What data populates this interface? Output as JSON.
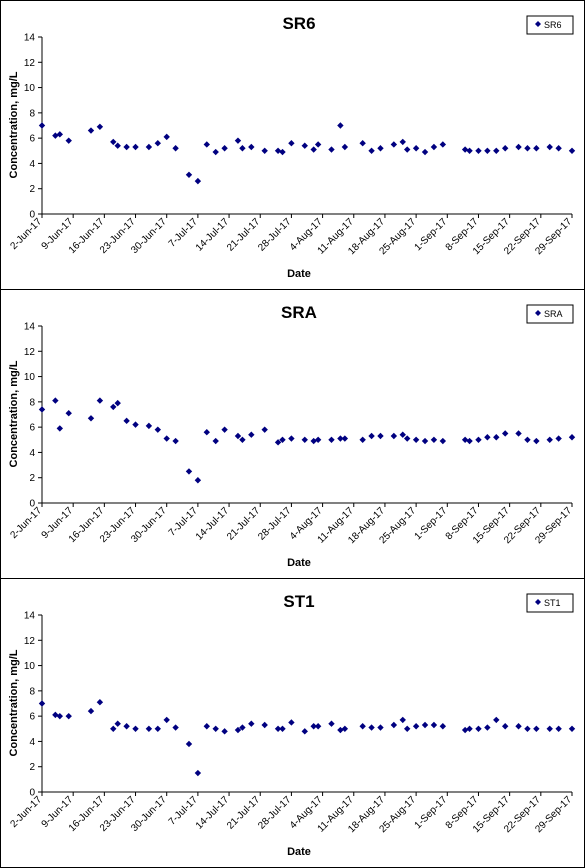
{
  "chart_data": [
    {
      "type": "scatter",
      "title": "SR6",
      "xlabel": "Date",
      "ylabel": "Concentration, mg/L",
      "ylim": [
        0,
        14
      ],
      "yticks": [
        0,
        2,
        4,
        6,
        8,
        10,
        12,
        14
      ],
      "xlim": [
        "2017-06-02",
        "2017-09-29"
      ],
      "x_tick_labels": [
        "2-Jun-17",
        "9-Jun-17",
        "16-Jun-17",
        "23-Jun-17",
        "30-Jun-17",
        "7-Jul-17",
        "14-Jul-17",
        "21-Jul-17",
        "28-Jul-17",
        "4-Aug-17",
        "11-Aug-17",
        "18-Aug-17",
        "25-Aug-17",
        "1-Sep-17",
        "8-Sep-17",
        "15-Sep-17",
        "22-Sep-17",
        "29-Sep-17"
      ],
      "grid": false,
      "legend": "top-right",
      "marker_color": "#000080",
      "series": [
        {
          "name": "SR6",
          "x": [
            "2017-06-02",
            "2017-06-05",
            "2017-06-06",
            "2017-06-08",
            "2017-06-13",
            "2017-06-15",
            "2017-06-18",
            "2017-06-19",
            "2017-06-21",
            "2017-06-23",
            "2017-06-26",
            "2017-06-28",
            "2017-06-30",
            "2017-07-02",
            "2017-07-05",
            "2017-07-07",
            "2017-07-09",
            "2017-07-11",
            "2017-07-13",
            "2017-07-16",
            "2017-07-17",
            "2017-07-19",
            "2017-07-22",
            "2017-07-25",
            "2017-07-26",
            "2017-07-28",
            "2017-07-31",
            "2017-08-02",
            "2017-08-03",
            "2017-08-06",
            "2017-08-08",
            "2017-08-09",
            "2017-08-13",
            "2017-08-15",
            "2017-08-17",
            "2017-08-20",
            "2017-08-22",
            "2017-08-23",
            "2017-08-25",
            "2017-08-27",
            "2017-08-29",
            "2017-08-31",
            "2017-09-05",
            "2017-09-06",
            "2017-09-08",
            "2017-09-10",
            "2017-09-12",
            "2017-09-14",
            "2017-09-17",
            "2017-09-19",
            "2017-09-21",
            "2017-09-24",
            "2017-09-26",
            "2017-09-29"
          ],
          "y": [
            7.0,
            6.2,
            6.3,
            5.8,
            6.6,
            6.9,
            5.7,
            5.4,
            5.3,
            5.3,
            5.3,
            5.6,
            6.1,
            5.2,
            3.1,
            2.6,
            5.5,
            4.9,
            5.2,
            5.8,
            5.2,
            5.3,
            5.0,
            5.0,
            4.9,
            5.6,
            5.4,
            5.1,
            5.5,
            5.1,
            7.0,
            5.3,
            5.6,
            5.0,
            5.2,
            5.5,
            5.7,
            5.1,
            5.2,
            4.9,
            5.3,
            5.5,
            5.1,
            5.0,
            5.0,
            5.0,
            5.0,
            5.2,
            5.3,
            5.2,
            5.2,
            5.3,
            5.2,
            5.0
          ]
        }
      ]
    },
    {
      "type": "scatter",
      "title": "SRA",
      "xlabel": "Date",
      "ylabel": "Concentration, mg/L",
      "ylim": [
        0,
        14
      ],
      "yticks": [
        0,
        2,
        4,
        6,
        8,
        10,
        12,
        14
      ],
      "xlim": [
        "2017-06-02",
        "2017-09-29"
      ],
      "x_tick_labels": [
        "2-Jun-17",
        "9-Jun-17",
        "16-Jun-17",
        "23-Jun-17",
        "30-Jun-17",
        "7-Jul-17",
        "14-Jul-17",
        "21-Jul-17",
        "28-Jul-17",
        "4-Aug-17",
        "11-Aug-17",
        "18-Aug-17",
        "25-Aug-17",
        "1-Sep-17",
        "8-Sep-17",
        "15-Sep-17",
        "22-Sep-17",
        "29-Sep-17"
      ],
      "grid": false,
      "legend": "top-right",
      "marker_color": "#000080",
      "series": [
        {
          "name": "SRA",
          "x": [
            "2017-06-02",
            "2017-06-05",
            "2017-06-06",
            "2017-06-08",
            "2017-06-13",
            "2017-06-15",
            "2017-06-18",
            "2017-06-19",
            "2017-06-21",
            "2017-06-23",
            "2017-06-26",
            "2017-06-28",
            "2017-06-30",
            "2017-07-02",
            "2017-07-05",
            "2017-07-07",
            "2017-07-09",
            "2017-07-11",
            "2017-07-13",
            "2017-07-16",
            "2017-07-17",
            "2017-07-19",
            "2017-07-22",
            "2017-07-25",
            "2017-07-26",
            "2017-07-28",
            "2017-07-31",
            "2017-08-02",
            "2017-08-03",
            "2017-08-06",
            "2017-08-08",
            "2017-08-09",
            "2017-08-13",
            "2017-08-15",
            "2017-08-17",
            "2017-08-20",
            "2017-08-22",
            "2017-08-23",
            "2017-08-25",
            "2017-08-27",
            "2017-08-29",
            "2017-08-31",
            "2017-09-05",
            "2017-09-06",
            "2017-09-08",
            "2017-09-10",
            "2017-09-12",
            "2017-09-14",
            "2017-09-17",
            "2017-09-19",
            "2017-09-21",
            "2017-09-24",
            "2017-09-26",
            "2017-09-29"
          ],
          "y": [
            7.4,
            8.1,
            5.9,
            7.1,
            6.7,
            8.1,
            7.6,
            7.9,
            6.5,
            6.2,
            6.1,
            5.8,
            5.1,
            4.9,
            2.5,
            1.8,
            5.6,
            4.9,
            5.8,
            5.3,
            5.0,
            5.4,
            5.8,
            4.8,
            5.0,
            5.1,
            5.0,
            4.9,
            5.0,
            5.0,
            5.1,
            5.1,
            5.0,
            5.3,
            5.3,
            5.3,
            5.4,
            5.1,
            5.0,
            4.9,
            5.0,
            4.9,
            5.0,
            4.9,
            5.0,
            5.2,
            5.2,
            5.5,
            5.5,
            5.0,
            4.9,
            5.0,
            5.1,
            5.2
          ]
        }
      ]
    },
    {
      "type": "scatter",
      "title": "ST1",
      "xlabel": "Date",
      "ylabel": "Concentration, mg/L",
      "ylim": [
        0,
        14
      ],
      "yticks": [
        0,
        2,
        4,
        6,
        8,
        10,
        12,
        14
      ],
      "xlim": [
        "2017-06-02",
        "2017-09-29"
      ],
      "x_tick_labels": [
        "2-Jun-17",
        "9-Jun-17",
        "16-Jun-17",
        "23-Jun-17",
        "30-Jun-17",
        "7-Jul-17",
        "14-Jul-17",
        "21-Jul-17",
        "28-Jul-17",
        "4-Aug-17",
        "11-Aug-17",
        "18-Aug-17",
        "25-Aug-17",
        "1-Sep-17",
        "8-Sep-17",
        "15-Sep-17",
        "22-Sep-17",
        "29-Sep-17"
      ],
      "grid": false,
      "legend": "top-right",
      "marker_color": "#000080",
      "series": [
        {
          "name": "ST1",
          "x": [
            "2017-06-02",
            "2017-06-05",
            "2017-06-06",
            "2017-06-08",
            "2017-06-13",
            "2017-06-15",
            "2017-06-18",
            "2017-06-19",
            "2017-06-21",
            "2017-06-23",
            "2017-06-26",
            "2017-06-28",
            "2017-06-30",
            "2017-07-02",
            "2017-07-05",
            "2017-07-07",
            "2017-07-09",
            "2017-07-11",
            "2017-07-13",
            "2017-07-16",
            "2017-07-17",
            "2017-07-19",
            "2017-07-22",
            "2017-07-25",
            "2017-07-26",
            "2017-07-28",
            "2017-07-31",
            "2017-08-02",
            "2017-08-03",
            "2017-08-06",
            "2017-08-08",
            "2017-08-09",
            "2017-08-13",
            "2017-08-15",
            "2017-08-17",
            "2017-08-20",
            "2017-08-22",
            "2017-08-23",
            "2017-08-25",
            "2017-08-27",
            "2017-08-29",
            "2017-08-31",
            "2017-09-05",
            "2017-09-06",
            "2017-09-08",
            "2017-09-10",
            "2017-09-12",
            "2017-09-14",
            "2017-09-17",
            "2017-09-19",
            "2017-09-21",
            "2017-09-24",
            "2017-09-26",
            "2017-09-29"
          ],
          "y": [
            7.0,
            6.1,
            6.0,
            6.0,
            6.4,
            7.1,
            5.0,
            5.4,
            5.2,
            5.0,
            5.0,
            5.0,
            5.7,
            5.1,
            3.8,
            1.5,
            5.2,
            5.0,
            4.8,
            4.9,
            5.1,
            5.4,
            5.3,
            5.0,
            5.0,
            5.5,
            4.8,
            5.2,
            5.2,
            5.4,
            4.9,
            5.0,
            5.2,
            5.1,
            5.1,
            5.3,
            5.7,
            5.0,
            5.2,
            5.3,
            5.3,
            5.2,
            4.9,
            5.0,
            5.0,
            5.1,
            5.7,
            5.2,
            5.2,
            5.0,
            5.0,
            5.0,
            5.0,
            5.0
          ]
        }
      ]
    }
  ]
}
